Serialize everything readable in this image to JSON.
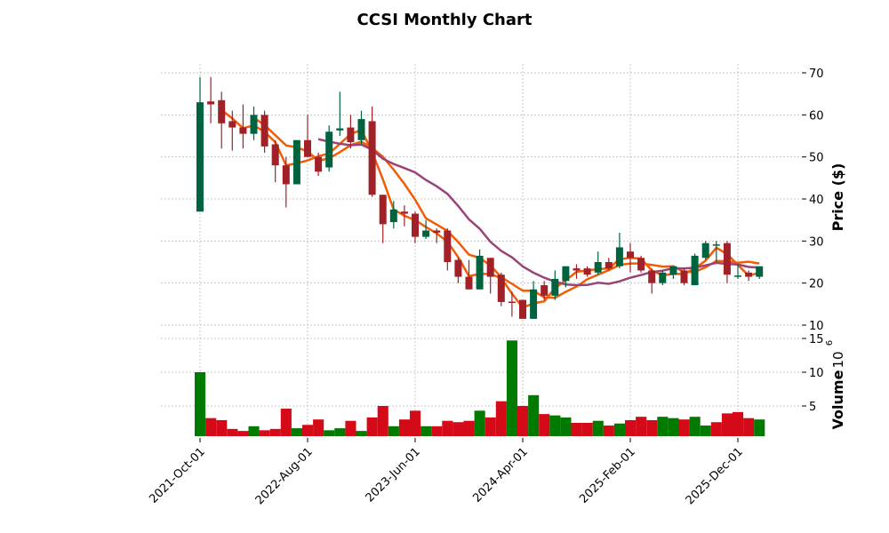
{
  "chart_data": {
    "type": "candlestick",
    "title": "CCSI Monthly Chart",
    "ylabel": "Price ($)",
    "volume_label": "Volume",
    "volume_exponent_label": "10",
    "volume_exponent": "6",
    "ylim": [
      9.2,
      72
    ],
    "volume_ylim": [
      0.5,
      15.3
    ],
    "yticks": [
      10,
      20,
      30,
      40,
      50,
      60,
      70
    ],
    "volume_yticks": [
      5,
      10,
      15
    ],
    "grid": true,
    "mav_periods": [
      3,
      6,
      12
    ],
    "colors": {
      "candle_up": "#006340",
      "candle_down": "#a02128",
      "volume_up": "#007a00",
      "volume_down": "#d50a19",
      "mav3": "#f25c05",
      "mav6": "#f25c05",
      "mav12": "#9b4377",
      "grid": "#bbbbbb"
    },
    "xtick_labels": [
      {
        "index": 0,
        "label": "2021-Oct-01"
      },
      {
        "index": 10,
        "label": "2022-Aug-01"
      },
      {
        "index": 20,
        "label": "2023-Jun-01"
      },
      {
        "index": 30,
        "label": "2024-Apr-01"
      },
      {
        "index": 40,
        "label": "2025-Feb-01"
      },
      {
        "index": 50,
        "label": "2025-Dec-01"
      }
    ],
    "ohlc": [
      [
        37,
        69,
        37,
        63
      ],
      [
        63.2,
        69,
        58,
        62.5
      ],
      [
        63.5,
        65.5,
        52,
        58
      ],
      [
        58.5,
        61,
        51.5,
        57
      ],
      [
        57,
        62.5,
        52,
        55.5
      ],
      [
        55.5,
        62,
        54,
        60
      ],
      [
        60,
        61,
        51,
        52.5
      ],
      [
        53,
        54,
        44,
        48
      ],
      [
        48,
        50,
        38,
        43.5
      ],
      [
        43.5,
        54,
        43.5,
        54
      ],
      [
        54,
        60,
        50,
        50
      ],
      [
        50,
        51,
        45.5,
        46.5
      ],
      [
        47.5,
        57.5,
        46.5,
        56
      ],
      [
        56.3,
        65.5,
        55,
        56.8
      ],
      [
        57,
        60,
        52,
        53.5
      ],
      [
        54,
        61,
        53,
        59
      ],
      [
        58.5,
        62,
        40.5,
        41
      ],
      [
        41,
        41,
        29.5,
        34
      ],
      [
        34.5,
        39.5,
        33,
        37.5
      ],
      [
        37,
        38.5,
        33.5,
        36.5
      ],
      [
        36.5,
        37,
        29.5,
        31
      ],
      [
        31,
        35,
        30.5,
        32.5
      ],
      [
        32.5,
        33,
        29.5,
        32
      ],
      [
        32.5,
        33,
        23,
        25
      ],
      [
        25.5,
        26,
        20,
        21.5
      ],
      [
        21.5,
        25.5,
        18.5,
        18.5
      ],
      [
        18.5,
        28,
        18.5,
        26.5
      ],
      [
        26,
        26,
        17.5,
        21.5
      ],
      [
        22,
        22.5,
        14.5,
        15.5
      ],
      [
        15.6,
        18,
        12,
        15.5
      ],
      [
        16,
        16,
        11.5,
        11.5
      ],
      [
        11.5,
        20.5,
        11.5,
        18.5
      ],
      [
        19.5,
        20.5,
        16,
        17
      ],
      [
        17,
        23,
        16,
        21
      ],
      [
        20.5,
        24,
        19,
        24
      ],
      [
        23.5,
        24.5,
        21,
        23
      ],
      [
        23.5,
        24,
        21.5,
        22
      ],
      [
        22.5,
        27.5,
        22,
        25
      ],
      [
        25,
        26,
        23,
        23.5
      ],
      [
        24,
        32,
        23.5,
        28.5
      ],
      [
        27.5,
        29.5,
        22.5,
        26
      ],
      [
        26,
        26.5,
        22.5,
        23
      ],
      [
        23,
        23.5,
        17.5,
        20
      ],
      [
        20,
        23,
        19.5,
        22.5
      ],
      [
        22,
        24,
        21,
        24
      ],
      [
        23,
        23.5,
        19.5,
        20
      ],
      [
        19.5,
        27,
        19.5,
        26.5
      ],
      [
        26,
        30,
        25.5,
        29.5
      ],
      [
        29,
        30,
        25,
        29.2
      ],
      [
        29.5,
        30,
        20,
        22
      ],
      [
        21.5,
        24.5,
        21,
        21.8
      ],
      [
        22.5,
        23,
        20.5,
        21.5
      ],
      [
        21.5,
        24,
        21,
        24
      ]
    ],
    "volume": [
      10,
      3.2,
      2.9,
      1.6,
      1.3,
      2.0,
      1.4,
      1.6,
      4.6,
      1.7,
      2.2,
      3.0,
      1.4,
      1.7,
      2.8,
      1.3,
      3.3,
      5.0,
      2.0,
      3.0,
      4.3,
      2.0,
      2.0,
      2.8,
      2.6,
      2.8,
      4.3,
      3.3,
      5.7,
      14.7,
      5.0,
      6.6,
      3.8,
      3.6,
      3.3,
      2.5,
      2.5,
      2.8,
      2.1,
      2.4,
      2.9,
      3.4,
      2.9,
      3.4,
      3.2,
      3.0,
      3.4,
      2.1,
      2.6,
      3.9,
      4.1,
      3.2,
      3.0
    ]
  }
}
